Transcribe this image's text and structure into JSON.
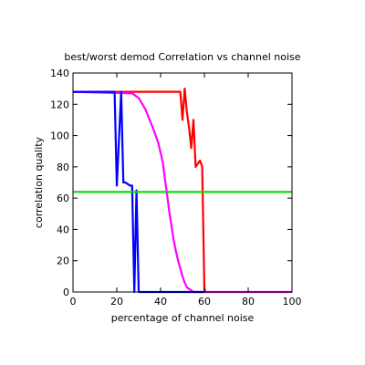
{
  "chart_data": {
    "type": "line",
    "title": "best/worst demod Correlation vs channel noise",
    "xlabel": "percentage of channel noise",
    "ylabel": "correlation quality",
    "xlim": [
      0,
      100
    ],
    "ylim": [
      0,
      140
    ],
    "xticks": [
      0,
      20,
      40,
      60,
      80,
      100
    ],
    "yticks": [
      0,
      20,
      40,
      60,
      80,
      100,
      120,
      140
    ],
    "grid": false,
    "legend": "none",
    "series": [
      {
        "color": "#ff0000",
        "x": [
          0,
          49,
          50,
          51,
          52,
          53,
          54,
          55,
          56,
          57,
          58,
          59,
          60,
          60.5,
          61
        ],
        "y": [
          128,
          128,
          110,
          130,
          115,
          105,
          92,
          110,
          80,
          82,
          84,
          80,
          2,
          0,
          0
        ]
      },
      {
        "color": "#ff00ff",
        "x": [
          0,
          27,
          30,
          33,
          35,
          37,
          39,
          41,
          42,
          43,
          44,
          45,
          46,
          47,
          48,
          49,
          50,
          51,
          52,
          53,
          54,
          55,
          56,
          60,
          80,
          100
        ],
        "y": [
          128,
          127,
          124,
          117,
          110,
          103,
          95,
          83,
          72,
          62,
          51,
          42,
          33,
          26,
          20,
          15,
          10,
          6,
          3,
          2,
          1,
          0,
          0,
          0,
          0,
          0
        ]
      },
      {
        "color": "#0000ff",
        "x": [
          0,
          19,
          20,
          22,
          23,
          24,
          26,
          27,
          28,
          29,
          30,
          30.5,
          35,
          60
        ],
        "y": [
          128,
          128,
          68,
          128,
          70,
          70,
          68,
          68,
          0,
          65,
          0,
          0,
          0,
          0
        ]
      },
      {
        "color": "#00dd00",
        "x": [
          0,
          100
        ],
        "y": [
          64,
          64
        ]
      }
    ]
  }
}
